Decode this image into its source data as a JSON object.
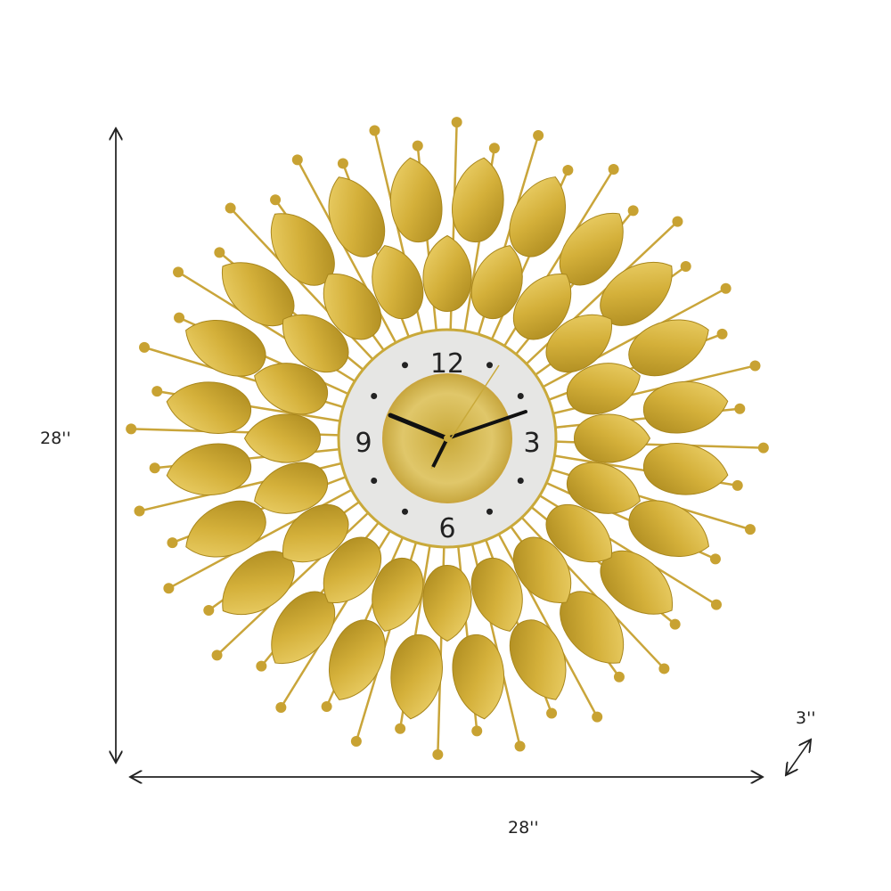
{
  "dimensions": {
    "height_label": "28''",
    "width_label": "28''",
    "depth_label": "3''"
  },
  "clock": {
    "numerals": [
      "12",
      "3",
      "6",
      "9"
    ],
    "colors": {
      "gold_light": "#e2c35a",
      "gold_dark": "#a8861c",
      "face": "#e6e6e4",
      "hands": "#111111"
    }
  }
}
